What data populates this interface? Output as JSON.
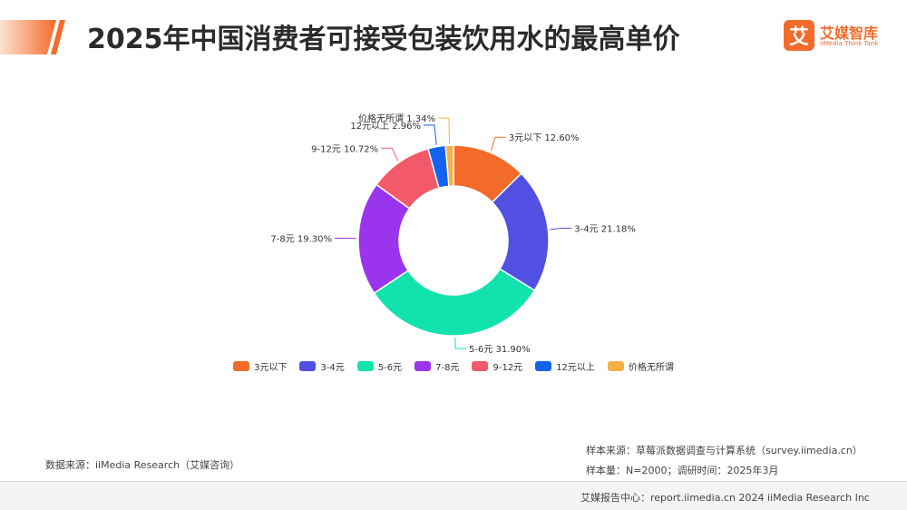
{
  "header": {
    "title": "2025年中国消费者可接受包装饮用水的最高单价",
    "accent_color": "#f26b2a"
  },
  "logo": {
    "mark": "艾",
    "name": "艾媒智库",
    "sub": "iiMedia Think Tank"
  },
  "chart_data": {
    "type": "pie",
    "donut": true,
    "title": "",
    "categories": [
      "3元以下",
      "3-4元",
      "5-6元",
      "7-8元",
      "9-12元",
      "12元以上",
      "价格无所谓"
    ],
    "values": [
      12.6,
      21.18,
      31.9,
      19.3,
      10.72,
      2.96,
      1.34
    ],
    "value_labels": [
      "12.60%",
      "21.18%",
      "31.90%",
      "19.30%",
      "10.72%",
      "2.96%",
      "1.34%"
    ],
    "colors": [
      "#f26b2a",
      "#5150e2",
      "#12e3ae",
      "#9a34ed",
      "#f25a6a",
      "#1463ef",
      "#f5b048"
    ],
    "unit": "%",
    "legend_position": "bottom"
  },
  "footer": {
    "data_source": "数据来源：iiMedia Research（艾媒咨询）",
    "sample_source": "样本来源：草莓派数据调查与计算系统（survey.iimedia.cn）",
    "sample_size": "样本量：N=2000；调研时间：2025年3月",
    "report_center": "艾媒报告中心：report.iimedia.cn   2024 iiMedia Research Inc"
  }
}
